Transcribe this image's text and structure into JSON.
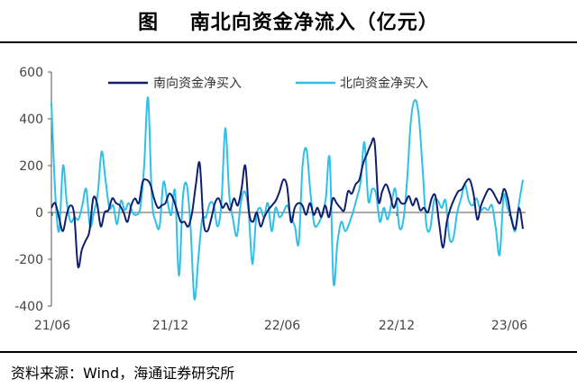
{
  "title": "图    南北向资金净流入（亿元）",
  "source": "资料来源：Wind，海通证券研究所",
  "chart_data": {
    "type": "line",
    "y_ticks": [
      600,
      400,
      200,
      0,
      -200,
      -400
    ],
    "ylim": [
      -400,
      600
    ],
    "x_tick_labels": [
      "21/06",
      "21/12",
      "22/06",
      "22/12",
      "23/06"
    ],
    "legend_placement": "top",
    "grid": false,
    "series": [
      {
        "name": "南向资金净买入",
        "color": "#0d1f6e",
        "values": [
          20,
          40,
          -20,
          -80,
          -10,
          30,
          -10,
          -230,
          -160,
          -120,
          -80,
          60,
          40,
          -60,
          0,
          10,
          60,
          40,
          30,
          0,
          -40,
          30,
          60,
          40,
          130,
          140,
          120,
          60,
          20,
          30,
          40,
          80,
          60,
          10,
          -40,
          -40,
          -60,
          0,
          120,
          210,
          -40,
          -80,
          -30,
          40,
          60,
          20,
          40,
          10,
          60,
          30,
          100,
          200,
          0,
          -40,
          0,
          -60,
          -20,
          10,
          30,
          50,
          90,
          140,
          110,
          -40,
          20,
          40,
          30,
          -10,
          40,
          -10,
          20,
          -20,
          30,
          -20,
          60,
          40,
          20,
          10,
          90,
          80,
          120,
          140,
          210,
          250,
          290,
          300,
          50,
          90,
          120,
          80,
          20,
          60,
          40,
          40,
          70,
          30,
          60,
          10,
          20,
          0,
          60,
          70,
          -50,
          -150,
          -40,
          20,
          60,
          90,
          100,
          130,
          140,
          80,
          -30,
          30,
          70,
          100,
          90,
          60,
          40,
          100,
          60,
          -30,
          -70,
          20,
          -70
        ]
      },
      {
        "name": "北向资金净买入",
        "color": "#2ec0e8",
        "values": [
          470,
          80,
          -80,
          200,
          40,
          -40,
          -20,
          -30,
          30,
          100,
          -60,
          0,
          80,
          260,
          140,
          20,
          30,
          -50,
          50,
          10,
          40,
          0,
          -10,
          20,
          200,
          490,
          60,
          -40,
          -60,
          130,
          50,
          -10,
          90,
          -270,
          60,
          120,
          -60,
          -370,
          -200,
          -30,
          -20,
          40,
          30,
          -60,
          40,
          360,
          80,
          -30,
          -100,
          40,
          90,
          10,
          -220,
          -20,
          20,
          -20,
          40,
          -80,
          20,
          -20,
          0,
          30,
          -20,
          -60,
          -130,
          200,
          270,
          90,
          -50,
          -50,
          -10,
          60,
          230,
          -300,
          -130,
          -40,
          -80,
          -50,
          0,
          60,
          130,
          300,
          50,
          100,
          80,
          -40,
          20,
          -30,
          40,
          100,
          -60,
          -40,
          130,
          390,
          480,
          420,
          200,
          -50,
          -70,
          50,
          50,
          20,
          50,
          -110,
          -110,
          0,
          60,
          120,
          50,
          30,
          60,
          10,
          20,
          10,
          30,
          -70,
          -180,
          70,
          20,
          -20,
          -80,
          40,
          140
        ]
      }
    ]
  }
}
